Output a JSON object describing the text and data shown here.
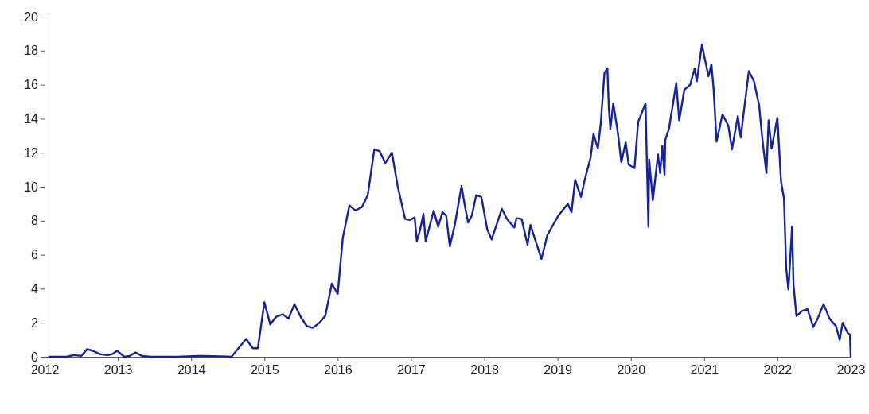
{
  "chart_data": {
    "type": "line",
    "xlim": [
      2012,
      2023
    ],
    "xticks": [
      2012,
      2013,
      2014,
      2015,
      2016,
      2017,
      2018,
      2019,
      2020,
      2021,
      2022,
      2023
    ],
    "ylim": [
      0,
      20
    ],
    "yticks": [
      0,
      2,
      4,
      6,
      8,
      10,
      12,
      14,
      16,
      18,
      20
    ],
    "marker": "none",
    "line_style": "solid",
    "series": [
      {
        "color": "#14239a",
        "x": [
          2012.05,
          2012.3,
          2012.4,
          2012.5,
          2012.58,
          2012.66,
          2012.76,
          2012.86,
          2012.92,
          2012.99,
          2013.09,
          2013.16,
          2013.24,
          2013.33,
          2013.45,
          2013.8,
          2014.1,
          2014.4,
          2014.55,
          2014.75,
          2014.84,
          2014.91,
          2015.0,
          2015.08,
          2015.16,
          2015.25,
          2015.33,
          2015.41,
          2015.5,
          2015.58,
          2015.66,
          2015.75,
          2015.83,
          2015.92,
          2016.0,
          2016.07,
          2016.16,
          2016.24,
          2016.33,
          2016.41,
          2016.5,
          2016.57,
          2016.65,
          2016.74,
          2016.82,
          2016.92,
          2016.99,
          2017.05,
          2017.08,
          2017.12,
          2017.17,
          2017.2,
          2017.25,
          2017.31,
          2017.37,
          2017.43,
          2017.48,
          2017.53,
          2017.6,
          2017.69,
          2017.73,
          2017.78,
          2017.83,
          2017.89,
          2017.96,
          2018.04,
          2018.1,
          2018.17,
          2018.24,
          2018.31,
          2018.41,
          2018.44,
          2018.51,
          2018.59,
          2018.63,
          2018.78,
          2018.86,
          2019.01,
          2019.14,
          2019.19,
          2019.24,
          2019.32,
          2019.37,
          2019.45,
          2019.49,
          2019.55,
          2019.59,
          2019.64,
          2019.68,
          2019.7,
          2019.72,
          2019.76,
          2019.82,
          2019.87,
          2019.93,
          2019.97,
          2020.05,
          2020.1,
          2020.2,
          2020.24,
          2020.25,
          2020.3,
          2020.37,
          2020.4,
          2020.43,
          2020.46,
          2020.47,
          2020.52,
          2020.62,
          2020.66,
          2020.73,
          2020.81,
          2020.87,
          2020.9,
          2020.97,
          2021.01,
          2021.06,
          2021.1,
          2021.13,
          2021.17,
          2021.25,
          2021.33,
          2021.38,
          2021.46,
          2021.5,
          2021.55,
          2021.61,
          2021.68,
          2021.75,
          2021.8,
          2021.85,
          2021.88,
          2021.92,
          2022.0,
          2022.05,
          2022.09,
          2022.12,
          2022.15,
          2022.2,
          2022.22,
          2022.26,
          2022.34,
          2022.41,
          2022.49,
          2022.55,
          2022.63,
          2022.71,
          2022.8,
          2022.85,
          2022.89,
          2022.96,
          2022.99,
          2023.0
        ],
        "values": [
          0,
          0,
          0.1,
          0.05,
          0.45,
          0.35,
          0.15,
          0.1,
          0.15,
          0.35,
          0,
          0.05,
          0.25,
          0.05,
          0,
          0,
          0.05,
          0.03,
          0,
          1.05,
          0.5,
          0.5,
          3.2,
          1.9,
          2.35,
          2.5,
          2.25,
          3.1,
          2.3,
          1.8,
          1.7,
          2.0,
          2.4,
          4.3,
          3.7,
          7.0,
          8.9,
          8.6,
          8.8,
          9.5,
          12.2,
          12.1,
          11.4,
          12.0,
          10.0,
          8.1,
          8.05,
          8.2,
          6.8,
          7.4,
          8.4,
          6.8,
          7.6,
          8.6,
          7.65,
          8.5,
          8.3,
          6.5,
          7.8,
          10.05,
          9.0,
          7.9,
          8.3,
          9.5,
          9.4,
          7.5,
          6.9,
          7.8,
          8.7,
          8.1,
          7.6,
          8.15,
          8.1,
          6.6,
          7.75,
          5.75,
          7.15,
          8.3,
          9.0,
          8.5,
          10.4,
          9.4,
          10.4,
          11.7,
          13.1,
          12.25,
          13.75,
          16.7,
          16.95,
          14.6,
          13.4,
          14.9,
          13.25,
          11.45,
          12.6,
          11.3,
          11.1,
          13.8,
          14.9,
          7.65,
          11.6,
          9.2,
          11.9,
          10.8,
          12.4,
          10.7,
          12.75,
          13.4,
          16.1,
          13.9,
          15.7,
          16.0,
          16.95,
          16.2,
          18.35,
          17.5,
          16.5,
          17.2,
          15.7,
          12.65,
          14.25,
          13.6,
          12.2,
          14.15,
          12.9,
          14.7,
          16.8,
          16.2,
          14.8,
          12.6,
          10.8,
          13.9,
          12.25,
          14.05,
          10.3,
          9.3,
          5.2,
          3.95,
          7.65,
          4.2,
          2.4,
          2.7,
          2.8,
          1.75,
          2.25,
          3.1,
          2.25,
          1.8,
          1.0,
          2.0,
          1.4,
          1.3,
          0
        ]
      }
    ]
  }
}
